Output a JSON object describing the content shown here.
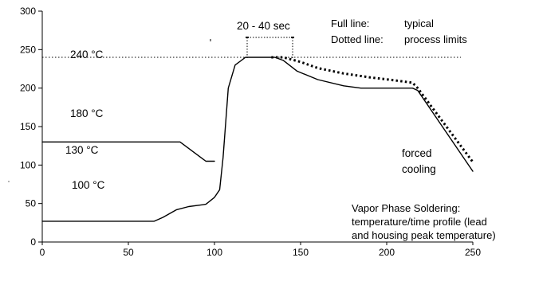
{
  "chart_data": {
    "type": "line",
    "title": "",
    "xlabel": "",
    "ylabel": "",
    "xlim": [
      0,
      250
    ],
    "ylim": [
      0,
      300
    ],
    "x_ticks": [
      0,
      50,
      100,
      150,
      200,
      250
    ],
    "y_ticks": [
      0,
      50,
      100,
      150,
      200,
      250,
      300
    ],
    "grid": false,
    "series": [
      {
        "style": "solid",
        "points": [
          [
            0,
            27
          ],
          [
            65,
            27
          ],
          [
            70,
            32
          ],
          [
            78,
            42
          ],
          [
            85,
            46
          ],
          [
            95,
            49
          ],
          [
            100,
            58
          ],
          [
            103,
            68
          ],
          [
            105,
            110
          ],
          [
            108,
            200
          ],
          [
            112,
            230
          ],
          [
            118,
            240
          ],
          [
            135,
            240
          ],
          [
            140,
            236
          ],
          [
            148,
            222
          ],
          [
            160,
            211
          ],
          [
            175,
            203
          ],
          [
            185,
            200
          ],
          [
            205,
            200
          ],
          [
            215,
            200
          ],
          [
            218,
            197
          ],
          [
            250,
            92
          ]
        ]
      },
      {
        "style": "solid",
        "points": [
          [
            0,
            130
          ],
          [
            80,
            130
          ],
          [
            95,
            105
          ],
          [
            100,
            105
          ]
        ]
      },
      {
        "style": "dotted",
        "points": [
          [
            133,
            240
          ],
          [
            140,
            240
          ],
          [
            150,
            234
          ],
          [
            160,
            226
          ],
          [
            175,
            219
          ],
          [
            190,
            214
          ],
          [
            205,
            210
          ],
          [
            215,
            207
          ],
          [
            218,
            200
          ],
          [
            250,
            104
          ]
        ]
      }
    ],
    "reference_lines": [
      {
        "axis": "y",
        "value": 240,
        "style": "dotted"
      }
    ],
    "annotations": {
      "temp_240": "240 °C",
      "temp_180": "180 °C",
      "temp_130": "130 °C",
      "temp_100": "100 °C",
      "duration": "20 - 40 sec",
      "cooling_line1": "forced",
      "cooling_line2": "cooling"
    },
    "legend": {
      "full_label": "Full line:",
      "full_value": "typical",
      "dotted_label": "Dotted line:",
      "dotted_value": "process limits"
    },
    "caption": [
      "Vapor Phase Soldering:",
      "temperature/time profile (lead",
      "and housing peak temperature)"
    ]
  }
}
